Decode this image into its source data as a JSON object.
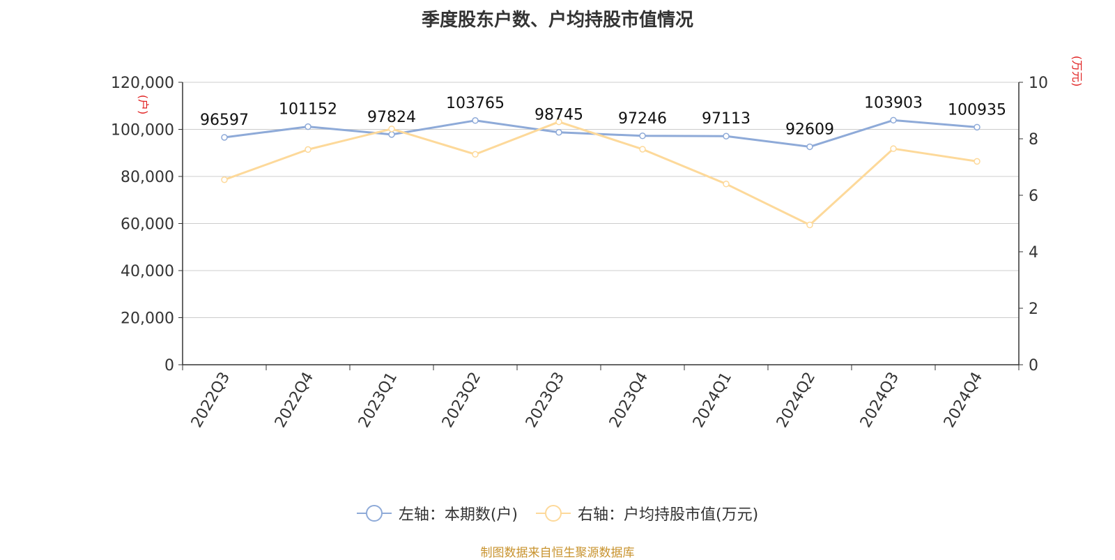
{
  "title": "季度股东户数、户均持股市值情况",
  "source": "制图数据来自恒生聚源数据库",
  "colors": {
    "left_series": "#8eaad8",
    "right_series": "#fdd99a",
    "axis_unit": "#e02020",
    "source": "#c8932e",
    "grid": "#cccccc",
    "axis": "#333333"
  },
  "legend": [
    {
      "label": "左轴：本期数(户)",
      "icon": "circle-line-marker"
    },
    {
      "label": "右轴：户均持股市值(万元)",
      "icon": "circle-line-marker"
    }
  ],
  "chart_data": {
    "type": "line",
    "title": "季度股东户数、户均持股市值情况",
    "categories": [
      "2022Q3",
      "2022Q4",
      "2023Q1",
      "2023Q2",
      "2023Q3",
      "2023Q4",
      "2024Q1",
      "2024Q2",
      "2024Q3",
      "2024Q4"
    ],
    "left_axis": {
      "unit": "(户)",
      "ylim": [
        0,
        120000
      ],
      "ticks": [
        "0",
        "20,000",
        "40,000",
        "60,000",
        "80,000",
        "100,000",
        "120,000"
      ]
    },
    "right_axis": {
      "unit": "(万元)",
      "ylim": [
        0,
        10
      ],
      "ticks": [
        "0",
        "2",
        "4",
        "6",
        "8",
        "10"
      ]
    },
    "grid": true,
    "legend_position": "bottom",
    "series": [
      {
        "name": "左轴：本期数(户)",
        "axis": "left",
        "values": [
          96597,
          101152,
          97824,
          103765,
          98745,
          97246,
          97113,
          92609,
          103903,
          100935
        ],
        "data_labels": [
          "96597",
          "101152",
          "97824",
          "103765",
          "98745",
          "97246",
          "97113",
          "92609",
          "103903",
          "100935"
        ]
      },
      {
        "name": "右轴：户均持股市值(万元)",
        "axis": "right",
        "values": [
          6.55,
          7.62,
          8.35,
          7.45,
          8.6,
          7.63,
          6.4,
          4.95,
          7.65,
          7.2
        ]
      }
    ]
  }
}
